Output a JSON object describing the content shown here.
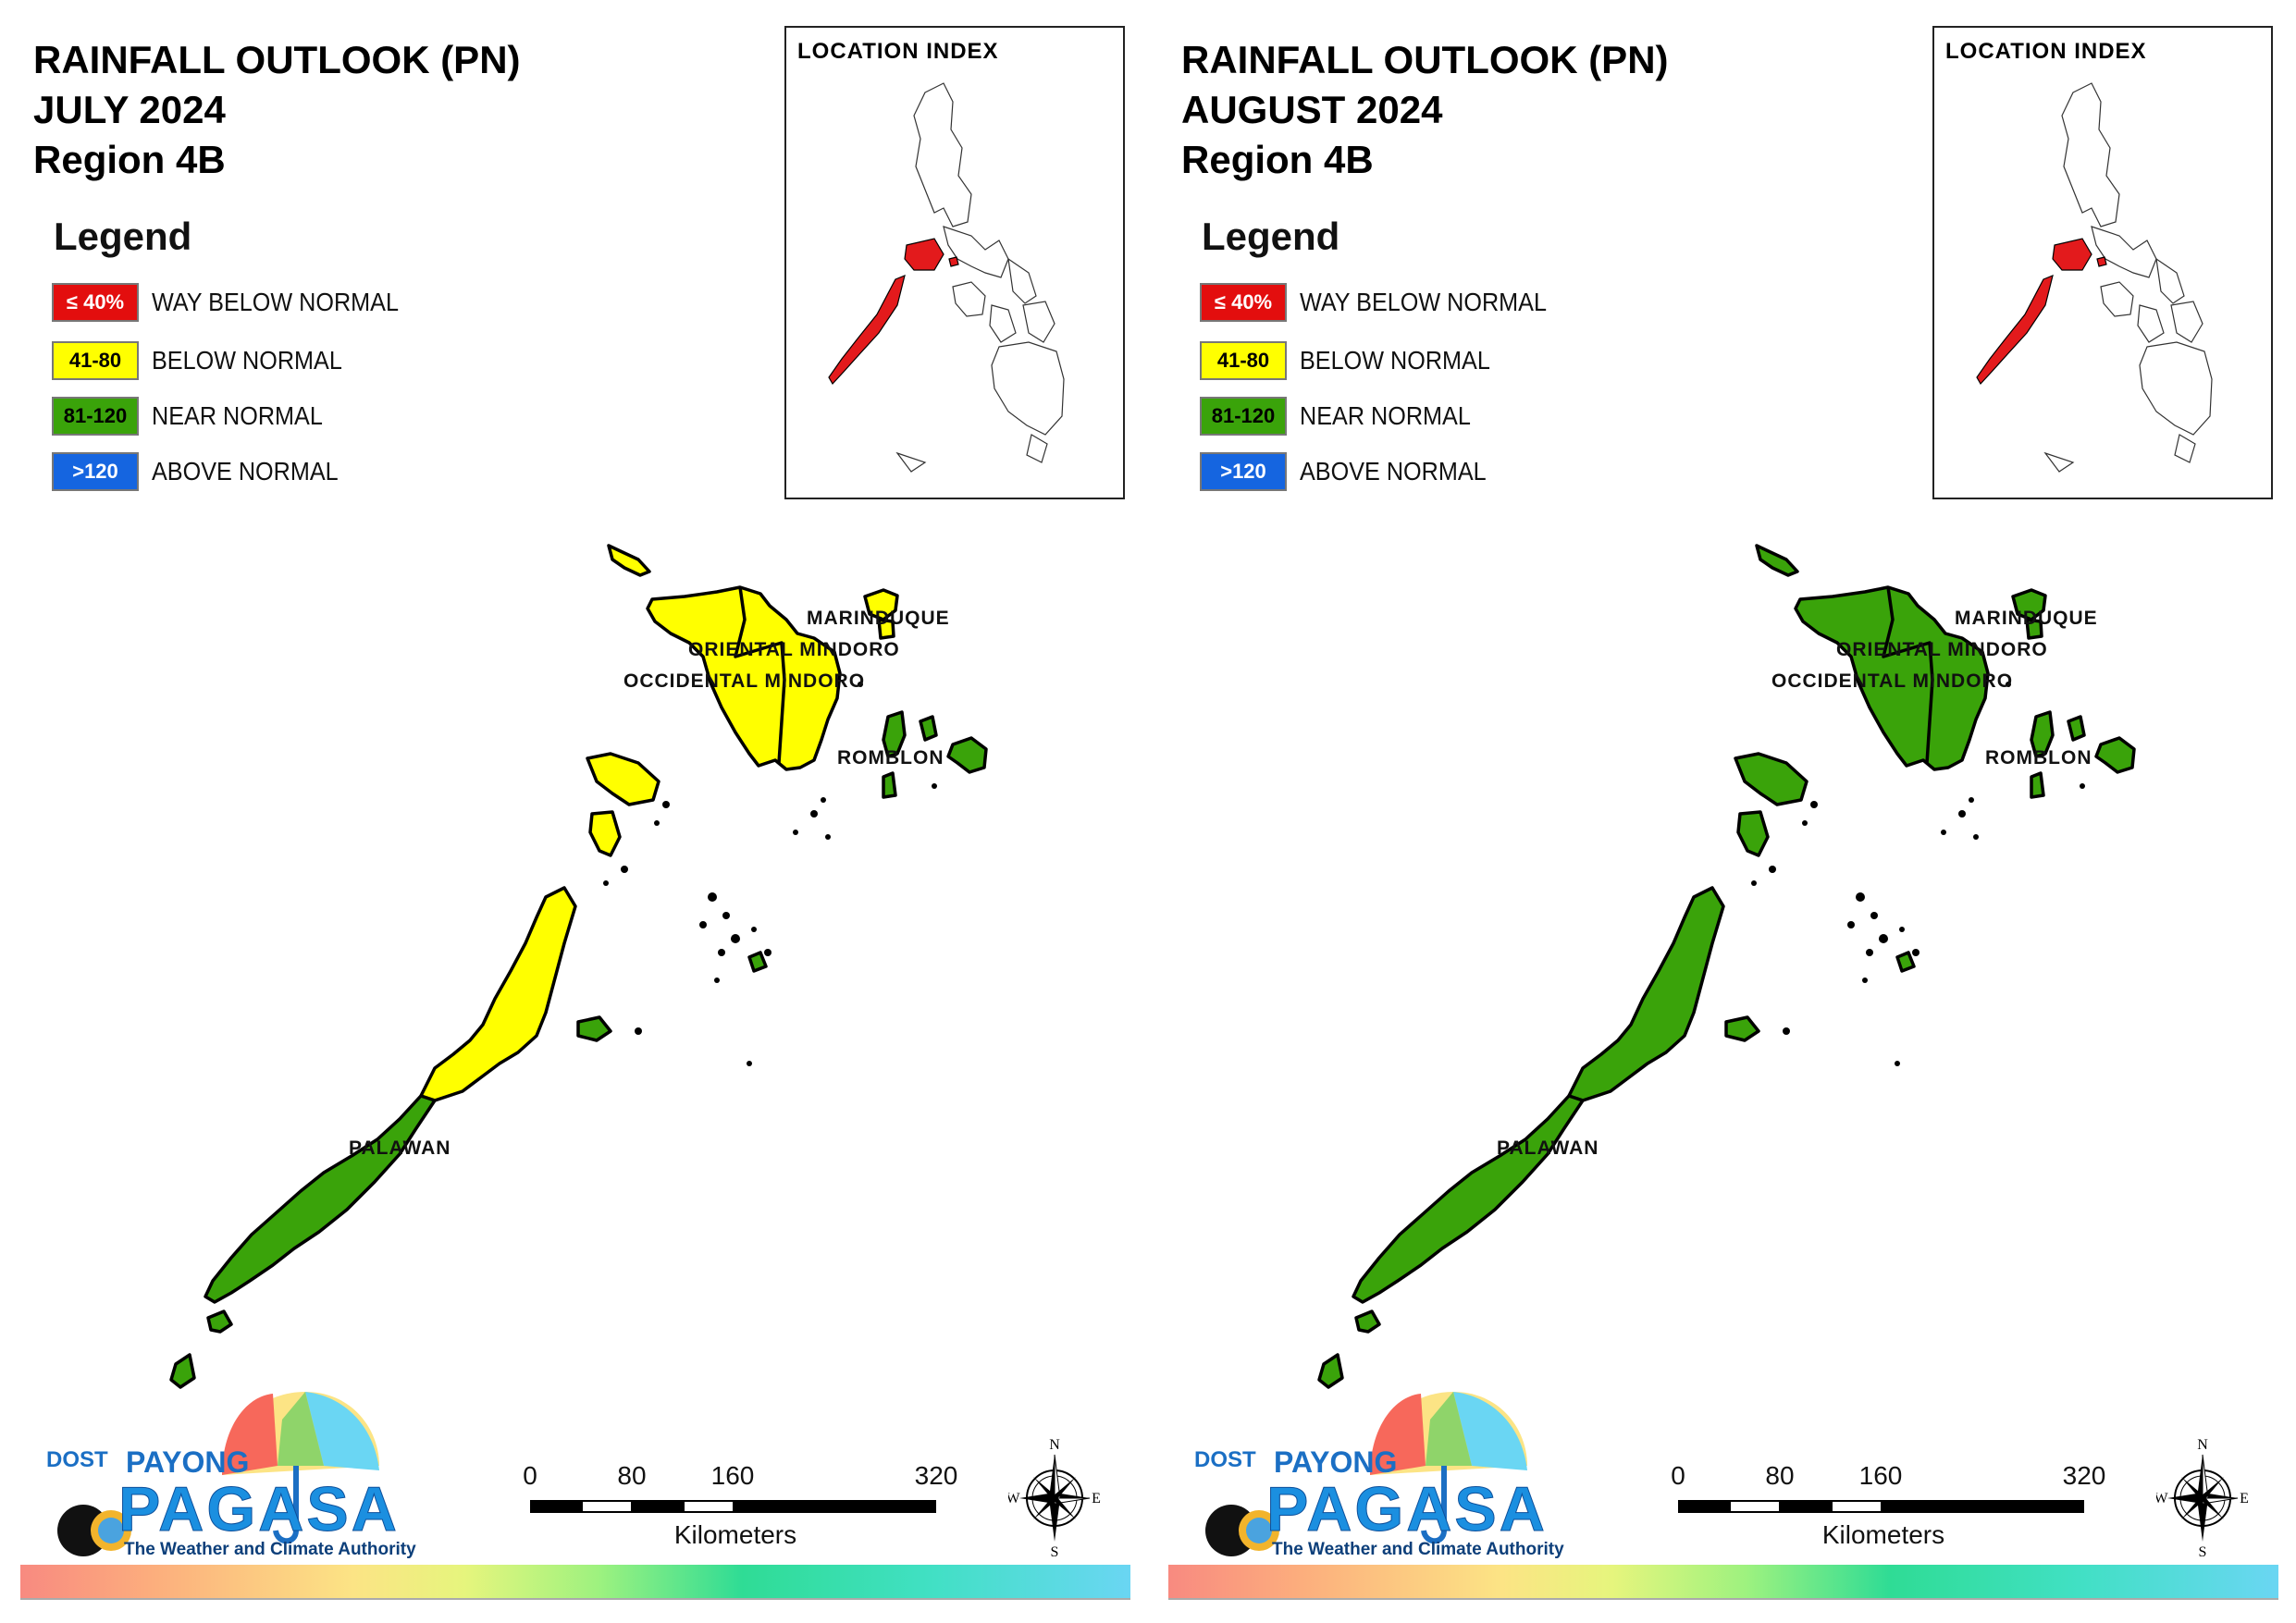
{
  "colors": {
    "way_below": "#e30e0e",
    "below": "#ffff00",
    "near": "#3aa30a",
    "above": "#1565e0",
    "outline": "#000000",
    "inset_highlight": "#e31a1c"
  },
  "panels": [
    {
      "title_line1": "RAINFALL OUTLOOK (PN)",
      "title_line2": "JULY 2024",
      "title_line3": "Region 4B",
      "provinces": {
        "marinduque": "below",
        "mindoro": "below",
        "romblon": "near",
        "palawan_north": "below",
        "palawan_south": "near"
      }
    },
    {
      "title_line1": "RAINFALL OUTLOOK (PN)",
      "title_line2": "AUGUST 2024",
      "title_line3": "Region 4B",
      "provinces": {
        "marinduque": "near",
        "mindoro": "near",
        "romblon": "near",
        "palawan_north": "near",
        "palawan_south": "near"
      }
    }
  ],
  "legend": {
    "title": "Legend",
    "items": [
      {
        "range": "≤ 40%",
        "label": "WAY BELOW NORMAL"
      },
      {
        "range": "41-80",
        "label": "BELOW NORMAL"
      },
      {
        "range": "81-120",
        "label": "NEAR NORMAL"
      },
      {
        "range": ">120",
        "label": "ABOVE NORMAL"
      }
    ]
  },
  "inset": {
    "title": "LOCATION INDEX"
  },
  "map_labels": {
    "marinduque": "MARINDUQUE",
    "oriental_mindoro": "ORIENTAL MINDORO",
    "occidental_mindoro": "OCCIDENTAL MINDORO",
    "romblon": "ROMBLON",
    "palawan": "PALAWAN"
  },
  "scale": {
    "ticks": [
      "0",
      "80",
      "160",
      "320"
    ],
    "unit": "Kilometers"
  },
  "compass": {
    "n": "N",
    "e": "E",
    "s": "S",
    "w": "W"
  },
  "logo": {
    "dost": "DOST",
    "payong": "PAYONG",
    "pagasa": "PAGASA",
    "tagline": "The Weather and Climate Authority"
  }
}
